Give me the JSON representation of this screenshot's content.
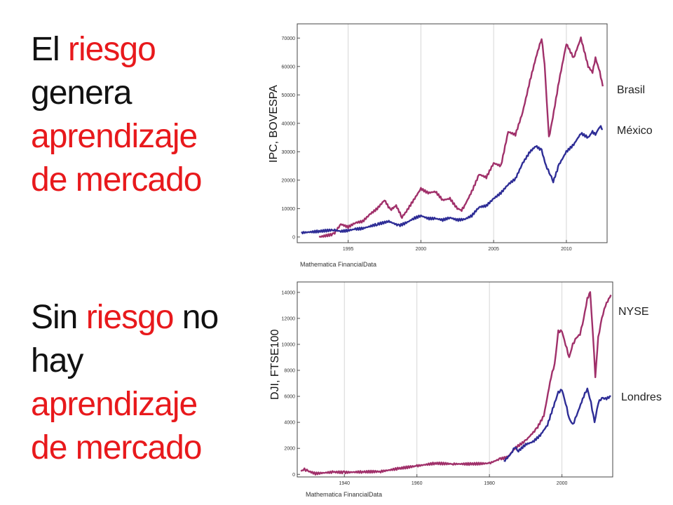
{
  "slide": {
    "block1": {
      "w1": "El",
      "w2": "riesgo",
      "w3": "genera",
      "w4": "aprendizaje",
      "w5": "de mercado"
    },
    "block2": {
      "w1": "Sin",
      "w2": "riesgo",
      "w3": "no",
      "w4": "hay",
      "w5": "aprendizaje",
      "w6": "de mercado"
    }
  },
  "colors": {
    "highlight": "#e8191c",
    "series_a": "#a0306a",
    "series_b": "#2e2d96",
    "grid": "#d6d6d6"
  },
  "chart_data": [
    {
      "type": "line",
      "ylabel": "IPC, BOVESPA",
      "credit": "Mathematica FinancialData",
      "xlim": [
        1991.5,
        2012.8
      ],
      "ylim": [
        -2000,
        75000
      ],
      "xticks": [
        1995,
        2000,
        2005,
        2010
      ],
      "yticks": [
        0,
        10000,
        20000,
        30000,
        40000,
        50000,
        60000,
        70000
      ],
      "grid": "vertical",
      "series": [
        {
          "name": "Brasil",
          "x": [
            1993.0,
            1994.0,
            1994.5,
            1995.0,
            1995.5,
            1996.0,
            1996.5,
            1997.0,
            1997.5,
            1997.9,
            1998.3,
            1998.7,
            1999.0,
            1999.5,
            2000.0,
            2000.5,
            2001.0,
            2001.5,
            2002.0,
            2002.5,
            2002.8,
            2003.0,
            2003.5,
            2004.0,
            2004.5,
            2005.0,
            2005.5,
            2006.0,
            2006.5,
            2007.0,
            2007.5,
            2007.9,
            2008.3,
            2008.5,
            2008.8,
            2009.0,
            2009.5,
            2010.0,
            2010.5,
            2011.0,
            2011.5,
            2011.8,
            2012.0,
            2012.3,
            2012.5
          ],
          "values": [
            0,
            1000,
            4500,
            3500,
            5000,
            5500,
            8000,
            10000,
            13000,
            9500,
            11000,
            7000,
            9000,
            13000,
            17000,
            15500,
            16000,
            13000,
            13500,
            10000,
            9500,
            11000,
            16000,
            22000,
            21000,
            26000,
            25000,
            37000,
            36000,
            44000,
            55000,
            63000,
            70000,
            61000,
            35000,
            40000,
            55000,
            68000,
            63000,
            70000,
            60000,
            58000,
            63000,
            58000,
            53000
          ]
        },
        {
          "name": "México",
          "x": [
            1991.8,
            1993.0,
            1994.0,
            1994.5,
            1995.0,
            1995.5,
            1996.0,
            1997.0,
            1997.8,
            1998.5,
            1999.0,
            1999.5,
            2000.0,
            2000.5,
            2001.0,
            2001.5,
            2002.0,
            2002.5,
            2003.0,
            2003.5,
            2004.0,
            2004.5,
            2005.0,
            2005.5,
            2006.0,
            2006.5,
            2007.0,
            2007.5,
            2007.9,
            2008.3,
            2008.6,
            2008.9,
            2009.1,
            2009.5,
            2010.0,
            2010.5,
            2011.0,
            2011.5,
            2011.8,
            2012.0,
            2012.3,
            2012.5
          ],
          "values": [
            1500,
            2000,
            2500,
            2000,
            2300,
            2800,
            3000,
            4500,
            5500,
            4000,
            5000,
            6500,
            7500,
            6500,
            6500,
            6000,
            6800,
            6000,
            6200,
            7500,
            10500,
            11000,
            13500,
            15500,
            18500,
            20500,
            26000,
            30000,
            32000,
            30500,
            25000,
            22000,
            19500,
            25500,
            30000,
            32500,
            36500,
            35000,
            37000,
            36000,
            39000,
            38000
          ]
        }
      ]
    },
    {
      "type": "line",
      "ylabel": "DJI, FTSE100",
      "credit": "Mathematica FinancialData",
      "xlim": [
        1927,
        2014
      ],
      "ylim": [
        -200,
        14800
      ],
      "xticks": [
        1940,
        1960,
        1980,
        2000
      ],
      "yticks": [
        0,
        2000,
        4000,
        6000,
        8000,
        10000,
        12000,
        14000
      ],
      "grid": "vertical",
      "series": [
        {
          "name": "NYSE",
          "x": [
            1928,
            1929,
            1930,
            1932,
            1937,
            1940,
            1945,
            1950,
            1955,
            1960,
            1965,
            1970,
            1975,
            1980,
            1983,
            1985,
            1987,
            1990,
            1993,
            1995,
            1997,
            1998,
            1999,
            2000,
            2001,
            2002,
            2003,
            2004,
            2005,
            2006,
            2007,
            2007.8,
            2008.5,
            2009.2,
            2010,
            2011,
            2012,
            2013.5
          ],
          "values": [
            250,
            380,
            250,
            60,
            180,
            150,
            190,
            220,
            450,
            650,
            850,
            800,
            800,
            850,
            1200,
            1300,
            2000,
            2600,
            3500,
            4500,
            7500,
            8500,
            11000,
            11000,
            10000,
            9000,
            10000,
            10500,
            10800,
            12000,
            13500,
            14000,
            11000,
            7500,
            10500,
            12000,
            13000,
            13800
          ]
        },
        {
          "name": "Londres",
          "x": [
            1984,
            1986,
            1987,
            1988,
            1990,
            1992,
            1994,
            1996,
            1998,
            1999,
            2000,
            2001,
            2002,
            2003,
            2004,
            2006,
            2007,
            2008,
            2009,
            2010,
            2011,
            2012,
            2013.5
          ],
          "values": [
            1000,
            1600,
            2100,
            1800,
            2300,
            2500,
            3000,
            3800,
            5500,
            6300,
            6500,
            5500,
            4300,
            3800,
            4500,
            6000,
            6600,
            5500,
            4000,
            5500,
            5900,
            5800,
            6000
          ]
        }
      ]
    }
  ]
}
